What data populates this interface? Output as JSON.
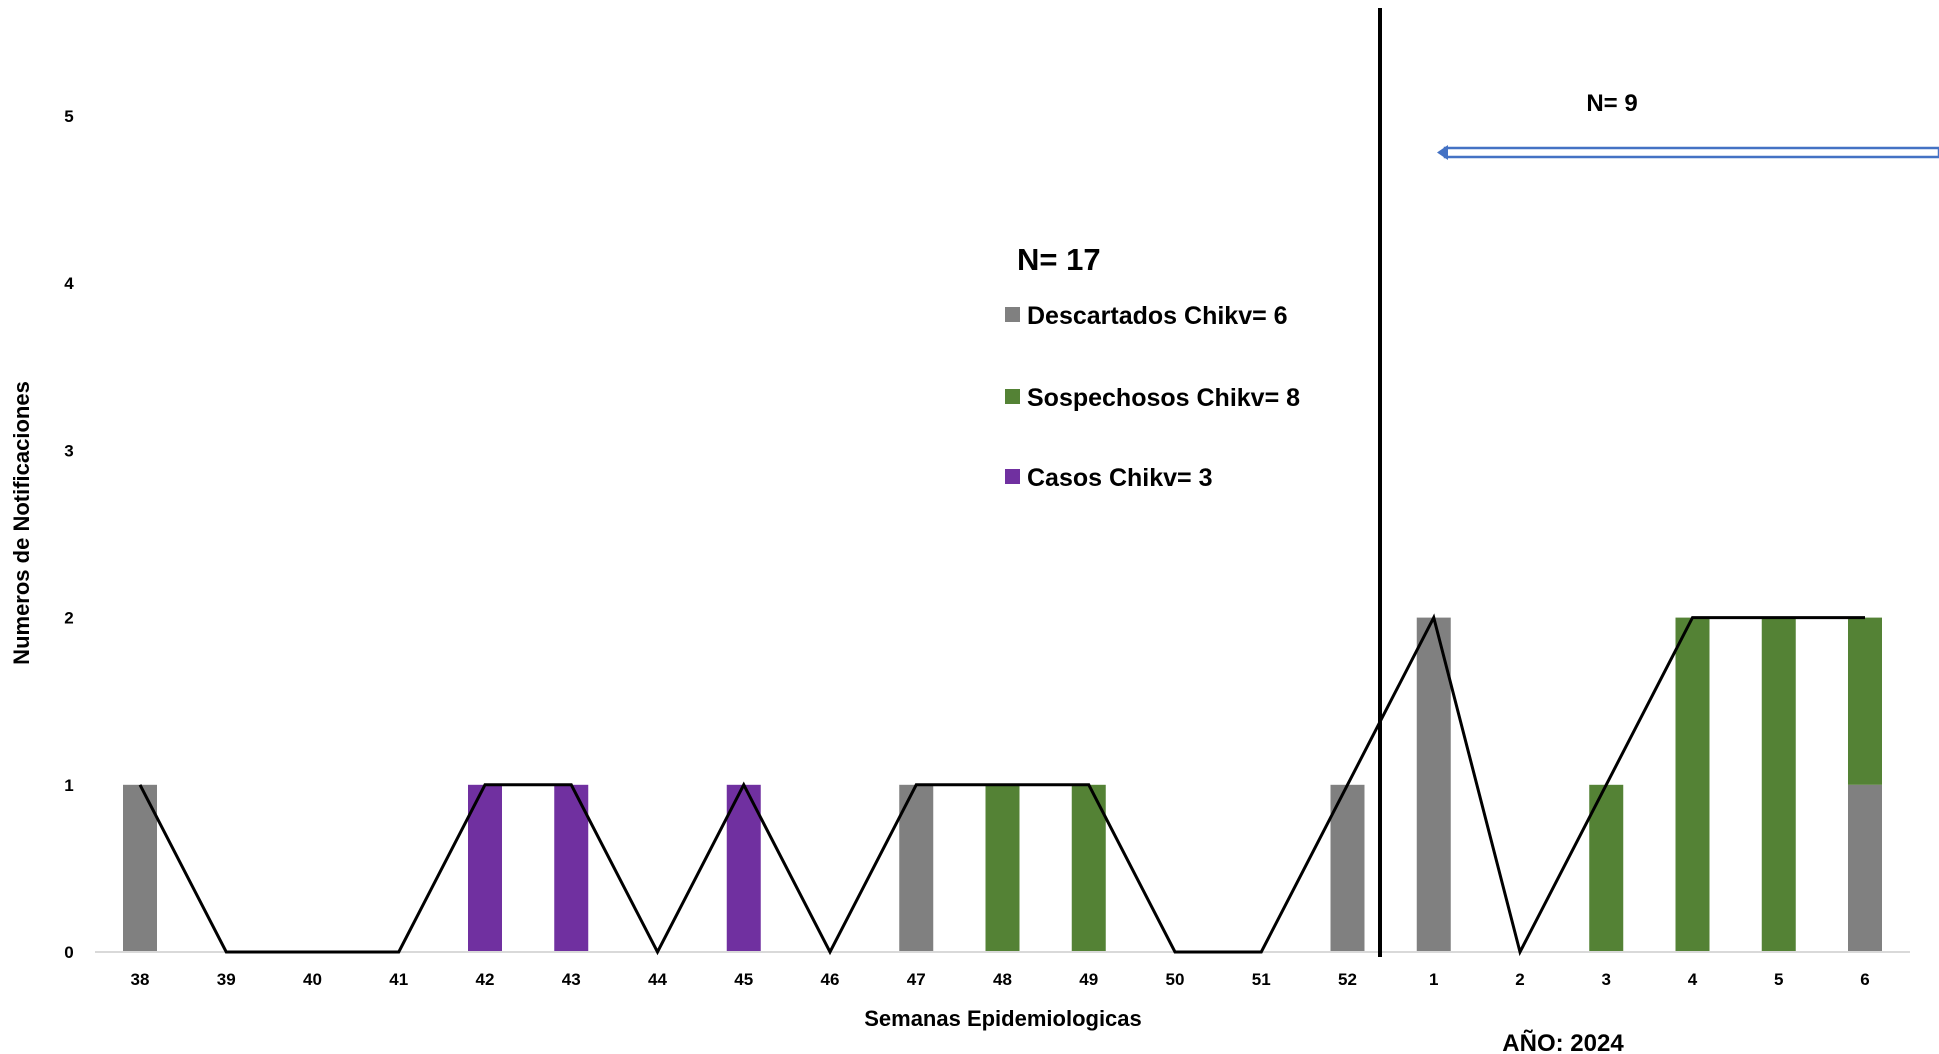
{
  "chart_data": {
    "type": "bar",
    "stacked": true,
    "categories": [
      "38",
      "39",
      "40",
      "41",
      "42",
      "43",
      "44",
      "45",
      "46",
      "47",
      "48",
      "49",
      "50",
      "51",
      "52",
      "1",
      "2",
      "3",
      "4",
      "5",
      "6"
    ],
    "series": [
      {
        "name": "Descartados Chikv= 6",
        "color": "#808080",
        "values": [
          1,
          0,
          0,
          0,
          0,
          0,
          0,
          0,
          0,
          1,
          0,
          0,
          0,
          0,
          1,
          2,
          0,
          0,
          0,
          0,
          1
        ]
      },
      {
        "name": "Sospechosos Chikv= 8",
        "color": "#548235",
        "values": [
          0,
          0,
          0,
          0,
          0,
          0,
          0,
          0,
          0,
          0,
          1,
          1,
          0,
          0,
          0,
          0,
          0,
          1,
          2,
          2,
          1
        ]
      },
      {
        "name": "Casos Chikv= 3",
        "color": "#7030A0",
        "values": [
          0,
          0,
          0,
          0,
          1,
          1,
          0,
          1,
          0,
          0,
          0,
          0,
          0,
          0,
          0,
          0,
          0,
          0,
          0,
          0,
          0
        ]
      }
    ],
    "total_line": {
      "color": "#000000",
      "values": [
        1,
        0,
        0,
        0,
        1,
        1,
        0,
        1,
        0,
        1,
        1,
        1,
        0,
        0,
        1,
        2,
        0,
        1,
        2,
        2,
        2
      ]
    },
    "ylabel": "Numeros de Notificaciones",
    "xlabel": "Semanas Epidemiologicas",
    "ylim": [
      0,
      5
    ],
    "yticks": [
      "0",
      "1",
      "2",
      "3",
      "4",
      "5"
    ],
    "grid": false,
    "legend_title": "N= 17",
    "legend_position": "center",
    "annotations": {
      "right_count": "N= 9",
      "year_label": "AÑO: 2024",
      "arrow_color": "#4472C4"
    }
  }
}
